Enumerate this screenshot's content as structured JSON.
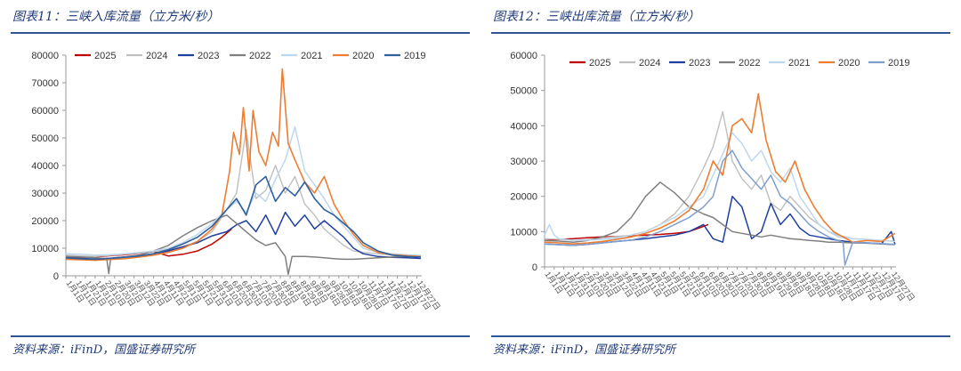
{
  "chart_data": [
    {
      "type": "line",
      "title": "图表11：三峡入库流量（立方米/秒）",
      "source": "资料来源：iFinD，国盛证券研究所",
      "ylim": [
        0,
        80000
      ],
      "yticks": [
        0,
        10000,
        20000,
        30000,
        40000,
        50000,
        60000,
        70000,
        80000
      ],
      "xlabel": "",
      "ylabel": "",
      "x_tick_labels": [
        "1月1日",
        "1月11日",
        "1月21日",
        "1月31日",
        "2月10日",
        "2月20日",
        "3月2日",
        "3月12日",
        "3月22日",
        "4月1日",
        "4月11日",
        "4月21日",
        "5月1日",
        "5月11日",
        "5月21日",
        "5月31日",
        "6月10日",
        "6月20日",
        "6月30日",
        "7月10日",
        "7月20日",
        "7月30日",
        "8月9日",
        "8月19日",
        "8月29日",
        "9月8日",
        "9月18日",
        "9月28日",
        "10月8日",
        "10月18日",
        "10月28日",
        "11月7日",
        "11月17日",
        "11月27日",
        "12月7日",
        "12月17日",
        "12月27日"
      ],
      "x_domain": [
        0,
        365
      ],
      "grid": false,
      "legend_position": "top",
      "series": [
        {
          "name": "2025",
          "color": "#c00000",
          "width": 1.5,
          "x": [
            0,
            15,
            30,
            45,
            60,
            75,
            90,
            105,
            120,
            135,
            150,
            160,
            170
          ],
          "y": [
            7000,
            6500,
            6800,
            7300,
            7600,
            8200,
            8800,
            7200,
            7800,
            9000,
            11500,
            14000,
            17000
          ]
        },
        {
          "name": "2024",
          "color": "#bfbfbf",
          "width": 1.4,
          "x": [
            0,
            15,
            30,
            45,
            60,
            75,
            90,
            105,
            120,
            135,
            150,
            165,
            175,
            185,
            195,
            205,
            215,
            225,
            235,
            245,
            255,
            265,
            275,
            285,
            295,
            305,
            320,
            335,
            350,
            364
          ],
          "y": [
            7500,
            7200,
            7000,
            7400,
            7800,
            8300,
            8800,
            9500,
            10500,
            12500,
            16000,
            24000,
            30000,
            53000,
            28000,
            31000,
            40000,
            30000,
            36000,
            26000,
            22000,
            17000,
            14000,
            11000,
            9000,
            8500,
            8000,
            7500,
            7300,
            7100
          ]
        },
        {
          "name": "2023",
          "color": "#1f3f9f",
          "width": 1.5,
          "x": [
            0,
            15,
            30,
            45,
            60,
            75,
            90,
            105,
            120,
            135,
            150,
            165,
            175,
            185,
            195,
            205,
            215,
            225,
            235,
            245,
            255,
            265,
            275,
            285,
            295,
            305,
            320,
            335,
            350,
            364
          ],
          "y": [
            6500,
            6300,
            6100,
            6400,
            6800,
            7200,
            8000,
            9000,
            10500,
            12000,
            14500,
            16000,
            18500,
            20000,
            16000,
            22000,
            15000,
            23000,
            18000,
            22000,
            17000,
            20000,
            17000,
            14000,
            10000,
            8000,
            7000,
            6700,
            6500,
            6300
          ]
        },
        {
          "name": "2022",
          "color": "#7f7f7f",
          "width": 1.5,
          "x": [
            0,
            15,
            30,
            42,
            44,
            46,
            60,
            75,
            90,
            105,
            120,
            135,
            150,
            165,
            175,
            185,
            195,
            205,
            215,
            225,
            228,
            232,
            245,
            255,
            265,
            275,
            285,
            295,
            305,
            320,
            335,
            350,
            364
          ],
          "y": [
            7000,
            6800,
            6500,
            6200,
            800,
            6300,
            6800,
            7500,
            9000,
            11000,
            14500,
            17500,
            20000,
            22000,
            19000,
            16000,
            13000,
            11000,
            12000,
            7000,
            500,
            7000,
            7000,
            6800,
            6500,
            6200,
            6000,
            6000,
            6200,
            6500,
            6800,
            7000,
            7200
          ]
        },
        {
          "name": "2021",
          "color": "#bdd7ee",
          "width": 1.5,
          "x": [
            0,
            15,
            30,
            45,
            60,
            75,
            90,
            105,
            120,
            135,
            150,
            165,
            175,
            185,
            195,
            205,
            215,
            225,
            235,
            245,
            255,
            265,
            275,
            285,
            295,
            305,
            320,
            335,
            350,
            364
          ],
          "y": [
            8000,
            7800,
            7500,
            7600,
            8000,
            8500,
            9000,
            10000,
            12000,
            15000,
            19000,
            24000,
            27000,
            23000,
            30000,
            27000,
            35000,
            42000,
            54000,
            38000,
            33000,
            28000,
            22000,
            18000,
            14000,
            10000,
            8500,
            8000,
            7600,
            7400
          ]
        },
        {
          "name": "2020",
          "color": "#ed7d31",
          "width": 1.6,
          "x": [
            0,
            15,
            30,
            45,
            60,
            75,
            90,
            105,
            120,
            135,
            150,
            160,
            168,
            172,
            178,
            182,
            188,
            192,
            198,
            205,
            212,
            218,
            222,
            228,
            235,
            245,
            255,
            265,
            275,
            285,
            295,
            305,
            320,
            335,
            350,
            364
          ],
          "y": [
            6000,
            5800,
            5600,
            5900,
            6200,
            6800,
            7500,
            8500,
            10000,
            12500,
            17000,
            22000,
            38000,
            52000,
            44000,
            61000,
            38000,
            60000,
            45000,
            40000,
            52000,
            47000,
            75000,
            48000,
            42000,
            34000,
            30000,
            36000,
            26000,
            20000,
            15000,
            11000,
            8500,
            7600,
            7300,
            7000
          ]
        },
        {
          "name": "2019",
          "color": "#2f5f9f",
          "width": 1.6,
          "x": [
            0,
            15,
            30,
            45,
            60,
            75,
            90,
            105,
            120,
            135,
            150,
            165,
            175,
            185,
            195,
            205,
            215,
            225,
            235,
            245,
            255,
            265,
            275,
            285,
            295,
            305,
            320,
            335,
            350,
            364
          ],
          "y": [
            6500,
            6200,
            6000,
            6300,
            6700,
            7200,
            8000,
            9500,
            11500,
            14000,
            18000,
            24000,
            28000,
            22000,
            33000,
            36000,
            27000,
            32000,
            29000,
            34000,
            28000,
            24000,
            22000,
            19000,
            16000,
            12000,
            9000,
            7500,
            7000,
            6800
          ]
        }
      ]
    },
    {
      "type": "line",
      "title": "图表12：三峡出库流量（立方米/秒）",
      "source": "资料来源：iFinD，国盛证券研究所",
      "ylim": [
        0,
        60000
      ],
      "yticks": [
        0,
        10000,
        20000,
        30000,
        40000,
        50000,
        60000
      ],
      "xlabel": "",
      "ylabel": "",
      "x_tick_labels": [
        "1月1日",
        "1月11日",
        "1月21日",
        "1月31日",
        "2月10日",
        "2月20日",
        "3月2日",
        "3月12日",
        "3月22日",
        "4月1日",
        "4月11日",
        "4月21日",
        "5月1日",
        "5月11日",
        "5月21日",
        "5月31日",
        "6月10日",
        "6月20日",
        "6月30日",
        "7月10日",
        "7月20日",
        "7月30日",
        "8月9日",
        "8月19日",
        "8月29日",
        "9月8日",
        "9月18日",
        "9月28日",
        "10月8日",
        "10月18日",
        "10月28日",
        "11月7日",
        "11月17日",
        "11月27日",
        "12月7日",
        "12月17日",
        "12月27日"
      ],
      "x_domain": [
        0,
        365
      ],
      "grid": false,
      "legend_position": "top",
      "series": [
        {
          "name": "2025",
          "color": "#c00000",
          "width": 1.5,
          "x": [
            0,
            15,
            30,
            45,
            60,
            75,
            90,
            105,
            120,
            135,
            150,
            160,
            170
          ],
          "y": [
            7500,
            7800,
            8000,
            8300,
            8500,
            8600,
            8800,
            9000,
            9200,
            9500,
            10000,
            11000,
            12000
          ]
        },
        {
          "name": "2024",
          "color": "#bfbfbf",
          "width": 1.4,
          "x": [
            0,
            15,
            30,
            45,
            60,
            75,
            90,
            105,
            120,
            135,
            150,
            165,
            175,
            185,
            195,
            205,
            215,
            225,
            235,
            245,
            255,
            265,
            275,
            285,
            295,
            305,
            320,
            335,
            350,
            364
          ],
          "y": [
            8000,
            7800,
            7500,
            7800,
            8200,
            8600,
            9000,
            10000,
            12000,
            15000,
            20000,
            28000,
            34000,
            44000,
            30000,
            25000,
            22000,
            26000,
            18000,
            16000,
            20000,
            17000,
            14000,
            12000,
            10000,
            9000,
            8000,
            7800,
            7500,
            7300
          ]
        },
        {
          "name": "2023",
          "color": "#1f3f9f",
          "width": 1.5,
          "x": [
            0,
            15,
            30,
            45,
            60,
            75,
            90,
            105,
            120,
            135,
            150,
            165,
            175,
            185,
            195,
            205,
            215,
            225,
            235,
            245,
            255,
            265,
            275,
            285,
            295,
            305,
            320,
            335,
            350,
            360,
            364
          ],
          "y": [
            6500,
            6300,
            6100,
            6400,
            6800,
            7200,
            7600,
            8000,
            8500,
            9000,
            10000,
            12000,
            8000,
            7000,
            20000,
            17000,
            8000,
            10000,
            18000,
            12000,
            15000,
            11000,
            9000,
            8500,
            8000,
            7500,
            7000,
            6800,
            6600,
            10000,
            6400
          ]
        },
        {
          "name": "2022",
          "color": "#7f7f7f",
          "width": 1.5,
          "x": [
            0,
            15,
            30,
            45,
            60,
            75,
            90,
            105,
            120,
            135,
            150,
            165,
            175,
            185,
            195,
            205,
            215,
            225,
            235,
            245,
            255,
            265,
            275,
            285,
            295,
            305,
            320,
            335,
            350,
            364
          ],
          "y": [
            7500,
            7300,
            7000,
            7500,
            8500,
            10000,
            14000,
            20000,
            24000,
            21000,
            17000,
            15000,
            14000,
            12000,
            10000,
            9500,
            9000,
            8500,
            9000,
            8500,
            8000,
            7800,
            7500,
            7300,
            7000,
            7000,
            6800,
            6700,
            6500,
            6300
          ]
        },
        {
          "name": "2021",
          "color": "#bdd7ee",
          "width": 1.5,
          "x": [
            0,
            5,
            10,
            15,
            30,
            45,
            60,
            75,
            90,
            105,
            120,
            135,
            150,
            165,
            175,
            185,
            195,
            205,
            215,
            225,
            235,
            245,
            255,
            265,
            275,
            285,
            295,
            305,
            320,
            335,
            350,
            364
          ],
          "y": [
            9000,
            12000,
            9000,
            8000,
            7500,
            7600,
            7800,
            8200,
            9000,
            10000,
            12000,
            14000,
            17000,
            20000,
            26000,
            32000,
            38000,
            35000,
            30000,
            33000,
            27000,
            24000,
            28000,
            20000,
            16000,
            12000,
            10000,
            8500,
            8000,
            7800,
            7500,
            7200
          ]
        },
        {
          "name": "2020",
          "color": "#ed7d31",
          "width": 1.6,
          "x": [
            0,
            15,
            30,
            45,
            60,
            75,
            90,
            105,
            120,
            135,
            150,
            165,
            175,
            185,
            195,
            205,
            215,
            222,
            230,
            240,
            250,
            260,
            270,
            280,
            290,
            300,
            310,
            320,
            335,
            350,
            364
          ],
          "y": [
            7000,
            6800,
            6500,
            6800,
            7200,
            7800,
            8500,
            9500,
            11000,
            13000,
            16000,
            22000,
            30000,
            26000,
            40000,
            42000,
            38000,
            49000,
            36000,
            27000,
            24000,
            30000,
            22000,
            17000,
            13000,
            10000,
            8500,
            7000,
            7500,
            7200,
            9500
          ]
        },
        {
          "name": "2019",
          "color": "#7f9fcf",
          "width": 1.5,
          "x": [
            0,
            15,
            30,
            45,
            60,
            75,
            90,
            105,
            120,
            135,
            150,
            165,
            175,
            185,
            195,
            205,
            215,
            225,
            235,
            245,
            255,
            265,
            275,
            285,
            295,
            305,
            310,
            312,
            320,
            335,
            350,
            364
          ],
          "y": [
            6500,
            6300,
            6100,
            6400,
            6800,
            7200,
            7600,
            8500,
            10000,
            12000,
            14000,
            17000,
            20000,
            30000,
            33000,
            28000,
            25000,
            22000,
            26000,
            20000,
            18000,
            15000,
            12000,
            10000,
            8500,
            7500,
            7000,
            500,
            7000,
            6800,
            6600,
            6400
          ]
        }
      ]
    }
  ]
}
